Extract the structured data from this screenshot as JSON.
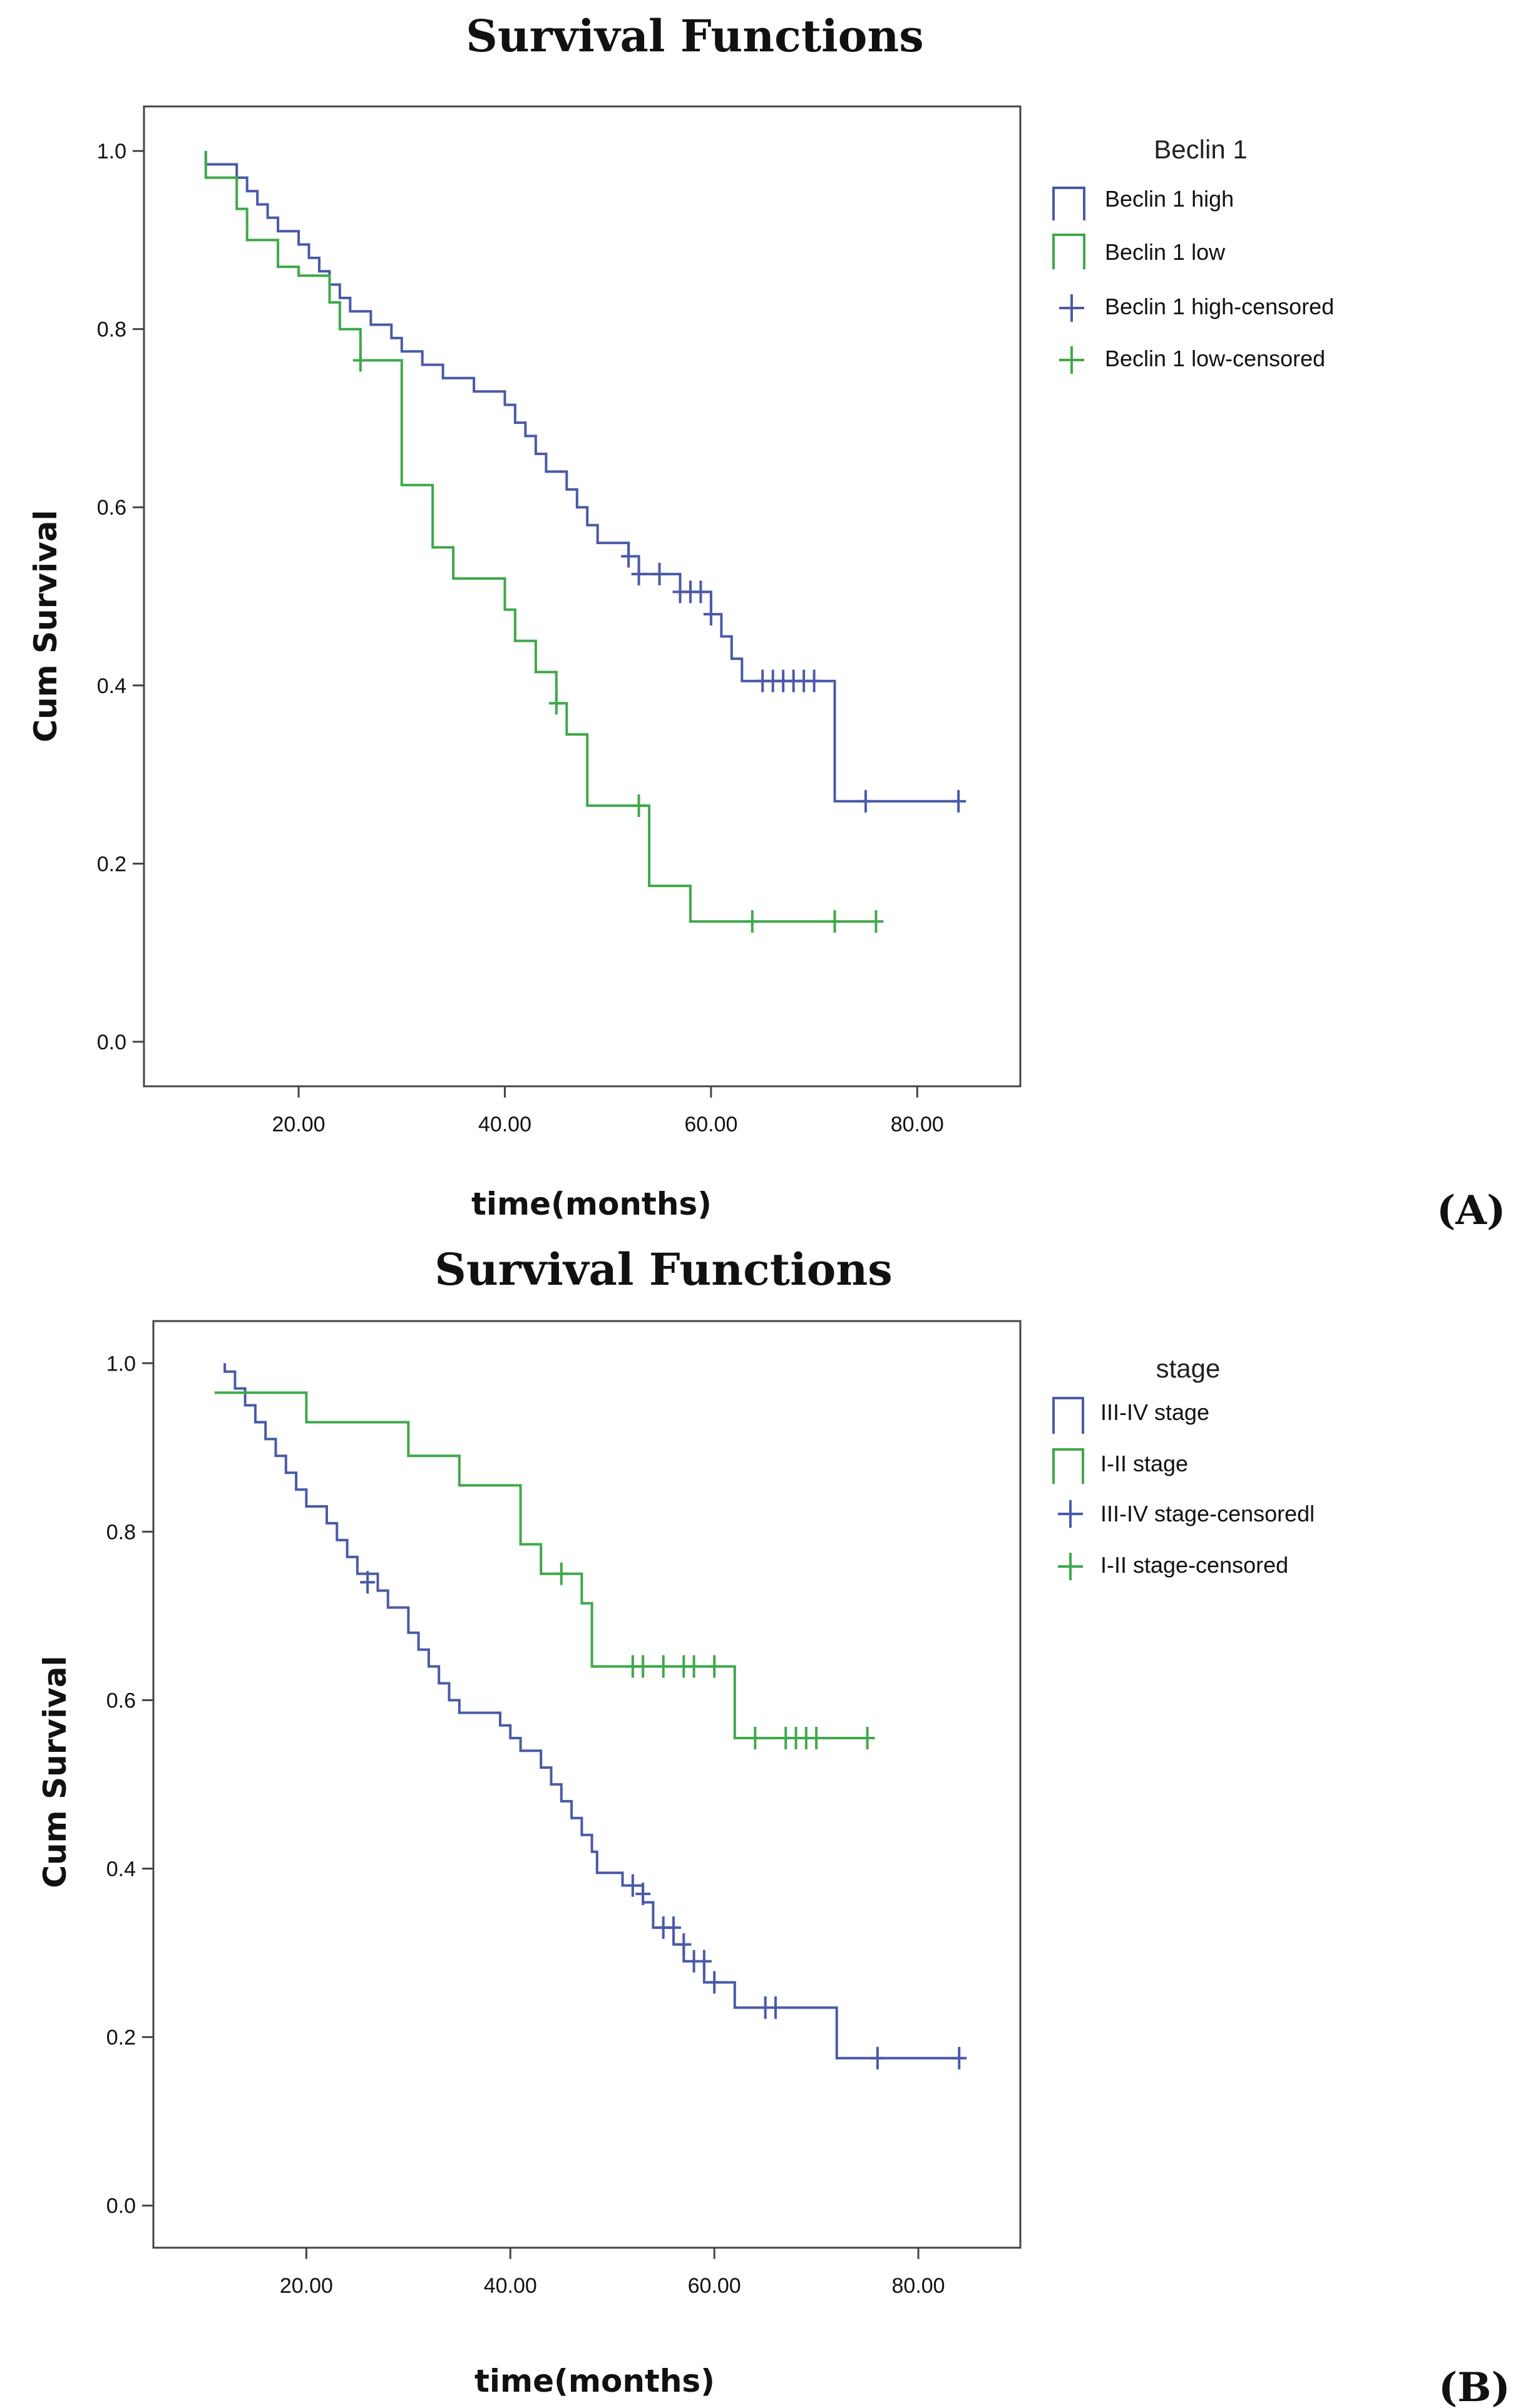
{
  "chart_data": [
    {
      "type": "line",
      "panel_label": "(A)",
      "title": "Survival Functions",
      "xlabel": "time(months)",
      "ylabel": "Cum Survival",
      "xlim": [
        5,
        90
      ],
      "ylim": [
        -0.05,
        1.05
      ],
      "xticks": [
        20,
        40,
        60,
        80
      ],
      "xtick_labels": [
        "20.00",
        "40.00",
        "60.00",
        "80.00"
      ],
      "yticks": [
        0,
        0.2,
        0.4,
        0.6,
        0.8,
        1.0
      ],
      "ytick_labels": [
        "0.0",
        "0.2",
        "0.4",
        "0.6",
        "0.8",
        "1.0"
      ],
      "legend_title": "Beclin 1",
      "legend_position": "right",
      "legend_entries": [
        "Beclin 1 high",
        "Beclin 1 low",
        "Beclin 1 high-censored",
        "Beclin 1 low-censored"
      ],
      "series": [
        {
          "name": "Beclin 1 high",
          "color": "#4a5aa8",
          "steps": [
            [
              11,
              1.0
            ],
            [
              11,
              0.985
            ],
            [
              14,
              0.985
            ],
            [
              14,
              0.97
            ],
            [
              15,
              0.97
            ],
            [
              15,
              0.955
            ],
            [
              16,
              0.955
            ],
            [
              16,
              0.94
            ],
            [
              17,
              0.94
            ],
            [
              17,
              0.925
            ],
            [
              18,
              0.925
            ],
            [
              18,
              0.91
            ],
            [
              20,
              0.91
            ],
            [
              20,
              0.895
            ],
            [
              21,
              0.895
            ],
            [
              21,
              0.88
            ],
            [
              22,
              0.88
            ],
            [
              22,
              0.865
            ],
            [
              23,
              0.865
            ],
            [
              23,
              0.85
            ],
            [
              24,
              0.85
            ],
            [
              24,
              0.835
            ],
            [
              25,
              0.835
            ],
            [
              25,
              0.82
            ],
            [
              27,
              0.82
            ],
            [
              27,
              0.805
            ],
            [
              29,
              0.805
            ],
            [
              29,
              0.79
            ],
            [
              30,
              0.79
            ],
            [
              30,
              0.775
            ],
            [
              32,
              0.775
            ],
            [
              32,
              0.76
            ],
            [
              34,
              0.76
            ],
            [
              34,
              0.745
            ],
            [
              37,
              0.745
            ],
            [
              37,
              0.73
            ],
            [
              40,
              0.73
            ],
            [
              40,
              0.715
            ],
            [
              41,
              0.715
            ],
            [
              41,
              0.695
            ],
            [
              42,
              0.695
            ],
            [
              42,
              0.68
            ],
            [
              43,
              0.68
            ],
            [
              43,
              0.66
            ],
            [
              44,
              0.66
            ],
            [
              44,
              0.64
            ],
            [
              46,
              0.64
            ],
            [
              46,
              0.62
            ],
            [
              47,
              0.62
            ],
            [
              47,
              0.6
            ],
            [
              48,
              0.6
            ],
            [
              48,
              0.58
            ],
            [
              49,
              0.58
            ],
            [
              49,
              0.56
            ],
            [
              52,
              0.56
            ],
            [
              52,
              0.545
            ],
            [
              53,
              0.545
            ],
            [
              53,
              0.525
            ],
            [
              57,
              0.525
            ],
            [
              57,
              0.505
            ],
            [
              60,
              0.505
            ],
            [
              60,
              0.48
            ],
            [
              61,
              0.48
            ],
            [
              61,
              0.455
            ],
            [
              62,
              0.455
            ],
            [
              62,
              0.43
            ],
            [
              63,
              0.43
            ],
            [
              63,
              0.405
            ],
            [
              72,
              0.405
            ],
            [
              72,
              0.27
            ],
            [
              84,
              0.27
            ]
          ],
          "censored": [
            [
              52,
              0.545
            ],
            [
              53,
              0.525
            ],
            [
              55,
              0.525
            ],
            [
              57,
              0.505
            ],
            [
              58,
              0.505
            ],
            [
              59,
              0.505
            ],
            [
              60,
              0.48
            ],
            [
              65,
              0.405
            ],
            [
              66,
              0.405
            ],
            [
              67,
              0.405
            ],
            [
              68,
              0.405
            ],
            [
              69,
              0.405
            ],
            [
              70,
              0.405
            ],
            [
              75,
              0.27
            ],
            [
              84,
              0.27
            ]
          ]
        },
        {
          "name": "Beclin 1 low",
          "color": "#3fa84a",
          "steps": [
            [
              11,
              1.0
            ],
            [
              11,
              0.97
            ],
            [
              14,
              0.97
            ],
            [
              14,
              0.935
            ],
            [
              15,
              0.935
            ],
            [
              15,
              0.9
            ],
            [
              18,
              0.9
            ],
            [
              18,
              0.87
            ],
            [
              20,
              0.87
            ],
            [
              20,
              0.86
            ],
            [
              23,
              0.86
            ],
            [
              23,
              0.83
            ],
            [
              24,
              0.83
            ],
            [
              24,
              0.8
            ],
            [
              26,
              0.8
            ],
            [
              26,
              0.765
            ],
            [
              30,
              0.765
            ],
            [
              30,
              0.625
            ],
            [
              33,
              0.625
            ],
            [
              33,
              0.555
            ],
            [
              35,
              0.555
            ],
            [
              35,
              0.52
            ],
            [
              40,
              0.52
            ],
            [
              40,
              0.485
            ],
            [
              41,
              0.485
            ],
            [
              41,
              0.45
            ],
            [
              43,
              0.45
            ],
            [
              43,
              0.415
            ],
            [
              45,
              0.415
            ],
            [
              45,
              0.38
            ],
            [
              46,
              0.38
            ],
            [
              46,
              0.345
            ],
            [
              48,
              0.345
            ],
            [
              48,
              0.265
            ],
            [
              54,
              0.265
            ],
            [
              54,
              0.175
            ],
            [
              58,
              0.175
            ],
            [
              58,
              0.135
            ],
            [
              76,
              0.135
            ]
          ],
          "censored": [
            [
              26,
              0.765
            ],
            [
              45,
              0.38
            ],
            [
              53,
              0.265
            ],
            [
              64,
              0.135
            ],
            [
              72,
              0.135
            ],
            [
              76,
              0.135
            ]
          ]
        }
      ]
    },
    {
      "type": "line",
      "panel_label": "(B)",
      "title": "Survival Functions",
      "xlabel": "time(months)",
      "ylabel": "Cum Survival",
      "xlim": [
        5,
        90
      ],
      "ylim": [
        -0.05,
        1.05
      ],
      "xticks": [
        20,
        40,
        60,
        80
      ],
      "xtick_labels": [
        "20.00",
        "40.00",
        "60.00",
        "80.00"
      ],
      "yticks": [
        0,
        0.2,
        0.4,
        0.6,
        0.8,
        1.0
      ],
      "ytick_labels": [
        "0.0",
        "0.2",
        "0.4",
        "0.6",
        "0.8",
        "1.0"
      ],
      "legend_title": "stage",
      "legend_position": "right",
      "legend_entries": [
        "III-IV stage",
        "I-II stage",
        "III-IV stage-censoredl",
        "I-II stage-censored"
      ],
      "series": [
        {
          "name": "III-IV stage",
          "color": "#4a5aa8",
          "steps": [
            [
              12,
              1.0
            ],
            [
              12,
              0.99
            ],
            [
              13,
              0.99
            ],
            [
              13,
              0.97
            ],
            [
              14,
              0.97
            ],
            [
              14,
              0.95
            ],
            [
              15,
              0.95
            ],
            [
              15,
              0.93
            ],
            [
              16,
              0.93
            ],
            [
              16,
              0.91
            ],
            [
              17,
              0.91
            ],
            [
              17,
              0.89
            ],
            [
              18,
              0.89
            ],
            [
              18,
              0.87
            ],
            [
              19,
              0.87
            ],
            [
              19,
              0.85
            ],
            [
              20,
              0.85
            ],
            [
              20,
              0.83
            ],
            [
              22,
              0.83
            ],
            [
              22,
              0.81
            ],
            [
              23,
              0.81
            ],
            [
              23,
              0.79
            ],
            [
              24,
              0.79
            ],
            [
              24,
              0.77
            ],
            [
              25,
              0.77
            ],
            [
              25,
              0.75
            ],
            [
              27,
              0.75
            ],
            [
              27,
              0.73
            ],
            [
              28,
              0.73
            ],
            [
              28,
              0.71
            ],
            [
              30,
              0.71
            ],
            [
              30,
              0.68
            ],
            [
              31,
              0.68
            ],
            [
              31,
              0.66
            ],
            [
              32,
              0.66
            ],
            [
              32,
              0.64
            ],
            [
              33,
              0.64
            ],
            [
              33,
              0.62
            ],
            [
              34,
              0.62
            ],
            [
              34,
              0.6
            ],
            [
              35,
              0.6
            ],
            [
              35,
              0.585
            ],
            [
              39,
              0.585
            ],
            [
              39,
              0.57
            ],
            [
              40,
              0.57
            ],
            [
              40,
              0.555
            ],
            [
              41,
              0.555
            ],
            [
              41,
              0.54
            ],
            [
              43,
              0.54
            ],
            [
              43,
              0.52
            ],
            [
              44,
              0.52
            ],
            [
              44,
              0.5
            ],
            [
              45,
              0.5
            ],
            [
              45,
              0.48
            ],
            [
              46,
              0.48
            ],
            [
              46,
              0.46
            ],
            [
              47,
              0.46
            ],
            [
              47,
              0.44
            ],
            [
              48,
              0.44
            ],
            [
              48,
              0.42
            ],
            [
              48.5,
              0.42
            ],
            [
              48.5,
              0.395
            ],
            [
              51,
              0.395
            ],
            [
              51,
              0.38
            ],
            [
              53,
              0.38
            ],
            [
              53,
              0.36
            ],
            [
              54,
              0.36
            ],
            [
              54,
              0.33
            ],
            [
              56,
              0.33
            ],
            [
              56,
              0.31
            ],
            [
              57,
              0.31
            ],
            [
              57,
              0.29
            ],
            [
              59,
              0.29
            ],
            [
              59,
              0.265
            ],
            [
              62,
              0.265
            ],
            [
              62,
              0.235
            ],
            [
              72,
              0.235
            ],
            [
              72,
              0.175
            ],
            [
              84,
              0.175
            ]
          ],
          "censored": [
            [
              26,
              0.74
            ],
            [
              52,
              0.38
            ],
            [
              53,
              0.37
            ],
            [
              55,
              0.33
            ],
            [
              56,
              0.33
            ],
            [
              57,
              0.31
            ],
            [
              58,
              0.29
            ],
            [
              59,
              0.29
            ],
            [
              60,
              0.265
            ],
            [
              65,
              0.235
            ],
            [
              66,
              0.235
            ],
            [
              76,
              0.175
            ],
            [
              84,
              0.175
            ]
          ]
        },
        {
          "name": "I-II stage",
          "color": "#3fa84a",
          "steps": [
            [
              11,
              0.965
            ],
            [
              15,
              0.965
            ],
            [
              20,
              0.965
            ],
            [
              20,
              0.93
            ],
            [
              30,
              0.93
            ],
            [
              30,
              0.89
            ],
            [
              35,
              0.89
            ],
            [
              35,
              0.855
            ],
            [
              41,
              0.855
            ],
            [
              41,
              0.785
            ],
            [
              43,
              0.785
            ],
            [
              43,
              0.75
            ],
            [
              47,
              0.75
            ],
            [
              47,
              0.715
            ],
            [
              48,
              0.715
            ],
            [
              48,
              0.64
            ],
            [
              62,
              0.64
            ],
            [
              62,
              0.555
            ],
            [
              75,
              0.555
            ]
          ],
          "censored": [
            [
              45,
              0.75
            ],
            [
              52,
              0.64
            ],
            [
              53,
              0.64
            ],
            [
              55,
              0.64
            ],
            [
              57,
              0.64
            ],
            [
              58,
              0.64
            ],
            [
              60,
              0.64
            ],
            [
              64,
              0.555
            ],
            [
              67,
              0.555
            ],
            [
              68,
              0.555
            ],
            [
              69,
              0.555
            ],
            [
              70,
              0.555
            ],
            [
              75,
              0.555
            ]
          ]
        }
      ]
    }
  ]
}
